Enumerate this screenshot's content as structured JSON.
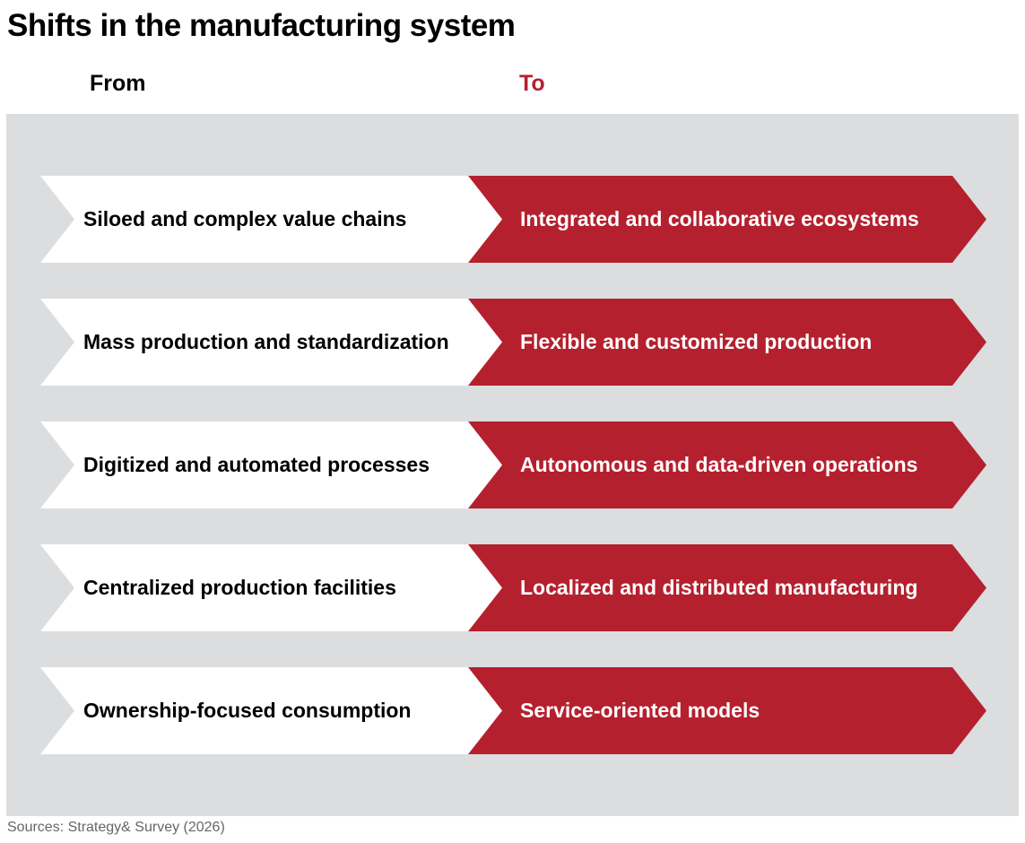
{
  "title": "Shifts in the manufacturing system",
  "columns": {
    "from": "From",
    "to": "To"
  },
  "colors": {
    "accent": "#b5202e",
    "panel": "#dcdddf",
    "from_box": "#ffffff"
  },
  "shifts": [
    {
      "from": "Siloed and complex value chains",
      "to": "Integrated and collaborative ecosystems"
    },
    {
      "from": "Mass production and standardization",
      "to": "Flexible and customized production"
    },
    {
      "from": "Digitized and automated processes",
      "to": "Autonomous and data-driven operations"
    },
    {
      "from": "Centralized production facilities",
      "to": "Localized and distributed manufacturing"
    },
    {
      "from": "Ownership-focused consumption",
      "to": "Service-oriented models"
    }
  ],
  "source": "Sources: Strategy& Survey (2026)"
}
